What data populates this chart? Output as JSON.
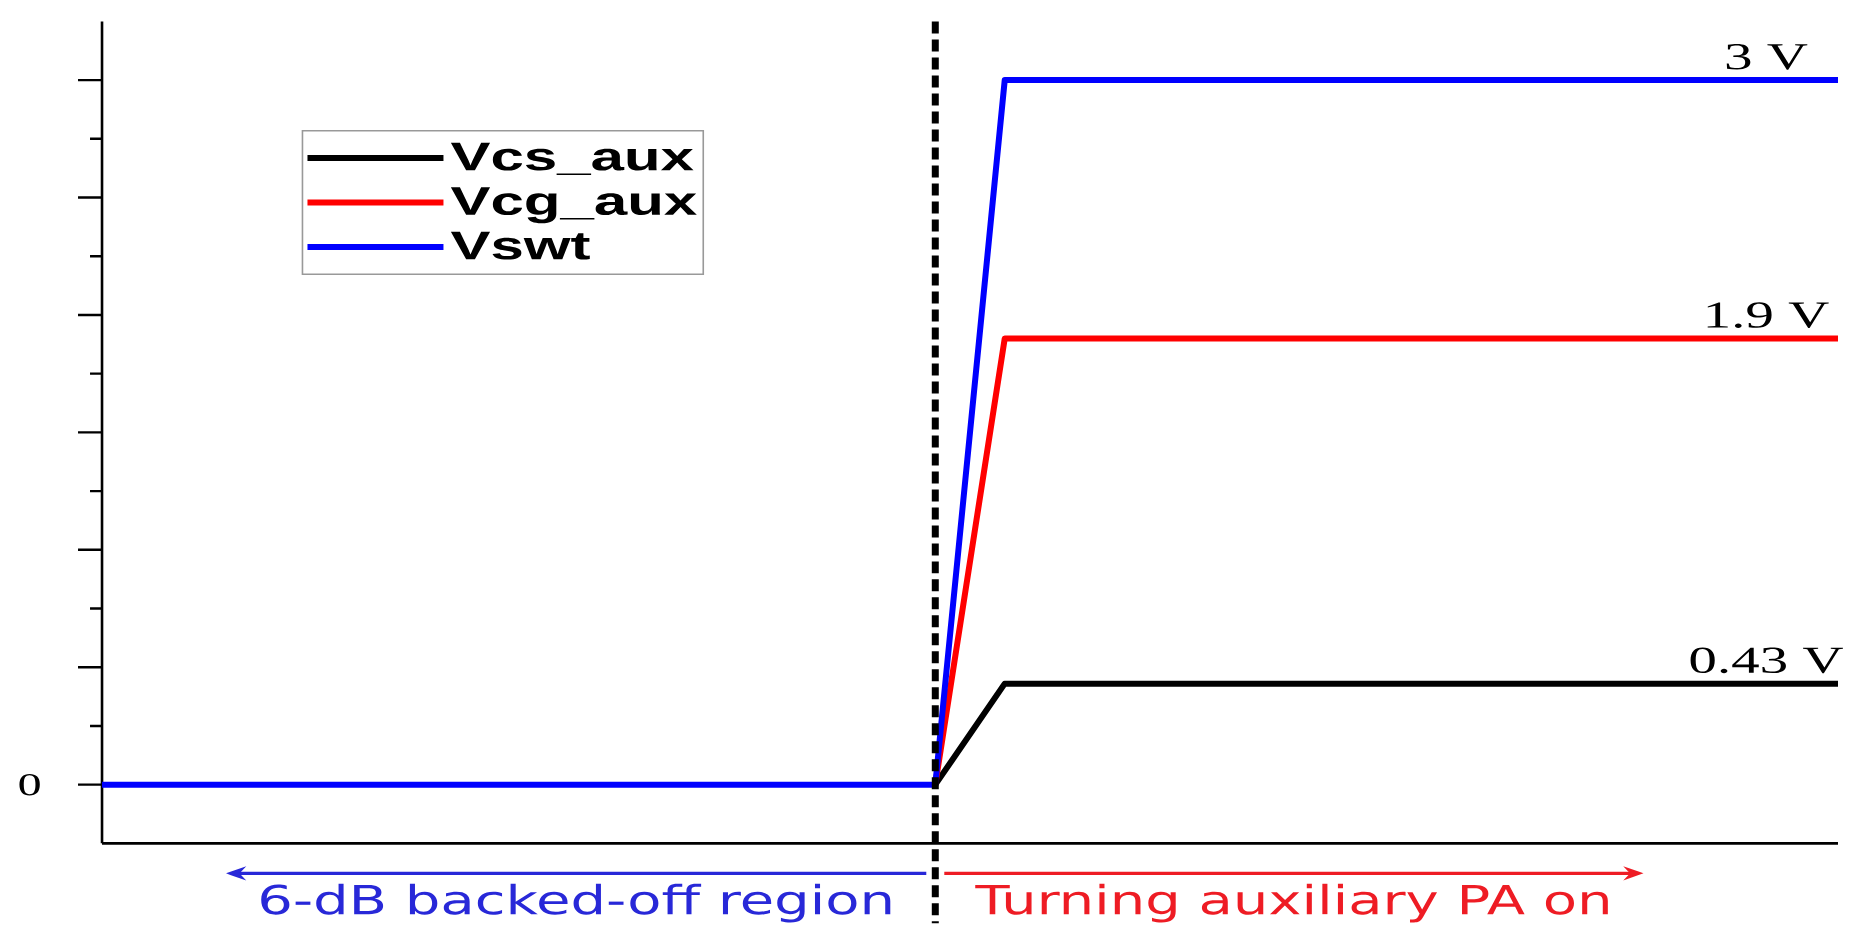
{
  "chart_data": {
    "type": "line",
    "categories": [
      null,
      null,
      null,
      null,
      null,
      null,
      null,
      null,
      null,
      null,
      null,
      null,
      null,
      null,
      null,
      null,
      null,
      null,
      null,
      null,
      null,
      null,
      null,
      null,
      null,
      null
    ],
    "series": [
      {
        "name": "Vcs_aux",
        "color": "#000000",
        "values": [
          null,
          null,
          null,
          null,
          null,
          null,
          null,
          null,
          null,
          null,
          null,
          null,
          0,
          0.43,
          0.43,
          0.43,
          0.43,
          0.43,
          0.43,
          0.43,
          0.43,
          0.43,
          0.43,
          0.43,
          0.43,
          0.43
        ],
        "value_labels": [
          null,
          null,
          null,
          null,
          null,
          null,
          null,
          null,
          null,
          null,
          null,
          null,
          null,
          null,
          null,
          null,
          null,
          null,
          null,
          null,
          null,
          null,
          null,
          null,
          null,
          "0.43 V"
        ]
      },
      {
        "name": "Vcg_aux",
        "color": "#ff0000",
        "values": [
          null,
          null,
          null,
          null,
          null,
          null,
          null,
          null,
          null,
          null,
          null,
          null,
          0,
          1.9,
          1.9,
          1.9,
          1.9,
          1.9,
          1.9,
          1.9,
          1.9,
          1.9,
          1.9,
          1.9,
          1.9,
          1.9
        ],
        "value_labels": [
          null,
          null,
          null,
          null,
          null,
          null,
          null,
          null,
          null,
          null,
          null,
          null,
          null,
          null,
          null,
          null,
          null,
          null,
          null,
          null,
          null,
          null,
          null,
          null,
          null,
          "1.9 V"
        ]
      },
      {
        "name": "Vswt",
        "color": "#0000ff",
        "values": [
          0,
          0,
          0,
          0,
          0,
          0,
          0,
          0,
          0,
          0,
          0,
          0,
          0,
          3,
          3,
          3,
          3,
          3,
          3,
          3,
          3,
          3,
          3,
          3,
          3,
          3
        ],
        "value_labels": [
          null,
          null,
          null,
          null,
          null,
          null,
          null,
          null,
          null,
          null,
          null,
          null,
          null,
          null,
          null,
          null,
          null,
          null,
          null,
          null,
          null,
          null,
          null,
          null,
          null,
          "3 V"
        ]
      }
    ],
    "ylim": [
      -0.25,
      3.25
    ],
    "yticks": [
      {
        "value": 0,
        "label": null
      },
      {
        "value": 0.25,
        "label": null
      },
      {
        "value": 0.5,
        "label": null
      },
      {
        "value": 0.75,
        "label": null
      },
      {
        "value": 1,
        "label": null
      },
      {
        "value": 1.25,
        "label": null
      },
      {
        "value": 1.5,
        "label": null
      },
      {
        "value": 1.75,
        "label": null
      },
      {
        "value": 2,
        "label": null
      },
      {
        "value": 2.25,
        "label": null
      },
      {
        "value": 2.5,
        "label": null
      },
      {
        "value": 2.75,
        "label": null
      },
      {
        "value": 3,
        "label": null
      }
    ],
    "annotations": [
      "6-dB backed-off region",
      "Turning auxiliary PA on",
      "0"
    ],
    "legend": "top left",
    "line_style": "solid"
  }
}
